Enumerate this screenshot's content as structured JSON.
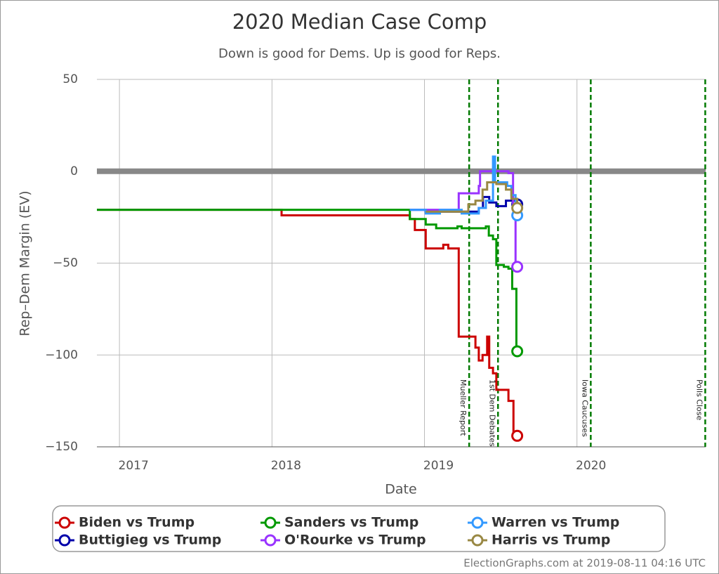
{
  "chart_data": {
    "type": "line",
    "step": true,
    "title": "2020 Median Case Comp",
    "subtitle": "Down is good for Dems. Up is good for Reps.",
    "x_label": "Date",
    "y_label": "Rep–Dem Margin (EV)",
    "xlim": [
      "2016-11-08",
      "2020-11-04"
    ],
    "xticks": [
      {
        "value": "2017-01-01",
        "label": "2017"
      },
      {
        "value": "2018-01-01",
        "label": "2018"
      },
      {
        "value": "2019-01-01",
        "label": "2019"
      },
      {
        "value": "2020-01-01",
        "label": "2020"
      }
    ],
    "ylim": [
      -150,
      50
    ],
    "yticks": [
      {
        "value": -150,
        "label": "−150"
      },
      {
        "value": -100,
        "label": "−100"
      },
      {
        "value": -50,
        "label": "−50"
      },
      0,
      50
    ],
    "grid": true,
    "reference_line": 0,
    "legend": "bottom",
    "annotations": [
      {
        "x": "2019-04-18",
        "label": "Mueller Report"
      },
      {
        "x": "2019-06-26",
        "label": "1st Dem Debates"
      },
      {
        "x": "2020-02-03",
        "label": "Iowa Caucuses"
      },
      {
        "x": "2020-11-03",
        "label": "Polls Close"
      }
    ],
    "annotation_color": "#007a00",
    "series": [
      {
        "name": "Biden vs Trump",
        "color": "#cc0000",
        "x": [
          "2016-11-08",
          "2018-01-24",
          "2018-11-27",
          "2018-12-09",
          "2019-01-04",
          "2019-02-15",
          "2019-02-27",
          "2019-03-24",
          "2019-05-03",
          "2019-05-11",
          "2019-05-20",
          "2019-05-31",
          "2019-06-05",
          "2019-06-14",
          "2019-06-22",
          "2019-07-21",
          "2019-08-02",
          "2019-08-11"
        ],
        "values": [
          -21,
          -24,
          -26,
          -32,
          -42,
          -40,
          -42,
          -90,
          -96,
          -103,
          -100,
          -90,
          -107,
          -110,
          -119,
          -125,
          -143,
          -144
        ]
      },
      {
        "name": "Buttigieg vs Trump",
        "color": "#0000aa",
        "x": [
          "2018-11-27",
          "2019-01-04",
          "2019-05-11",
          "2019-05-21",
          "2019-06-05",
          "2019-06-22",
          "2019-07-15",
          "2019-08-01",
          "2019-08-11"
        ],
        "values": [
          -21,
          -22,
          -20,
          -14,
          -17,
          -19,
          -16,
          -19,
          -18
        ]
      },
      {
        "name": "Sanders vs Trump",
        "color": "#009900",
        "x": [
          "2016-11-08",
          "2018-11-27",
          "2019-01-04",
          "2019-01-29",
          "2019-03-21",
          "2019-03-31",
          "2019-05-28",
          "2019-06-04",
          "2019-06-14",
          "2019-06-22",
          "2019-07-10",
          "2019-07-21",
          "2019-07-30",
          "2019-08-09",
          "2019-08-11"
        ],
        "values": [
          -21,
          -26,
          -29,
          -31,
          -30,
          -31,
          -30,
          -35,
          -37,
          -51,
          -52,
          -53,
          -64,
          -98,
          -98
        ]
      },
      {
        "name": "O'Rourke vs Trump",
        "color": "#9933ff",
        "x": [
          "2018-11-27",
          "2019-03-24",
          "2019-04-20",
          "2019-05-11",
          "2019-05-14",
          "2019-07-21",
          "2019-08-01",
          "2019-08-07",
          "2019-08-11"
        ],
        "values": [
          -21,
          -12,
          -12,
          -8,
          0,
          -1,
          -21,
          -52,
          -52
        ]
      },
      {
        "name": "Warren vs Trump",
        "color": "#3399ff",
        "x": [
          "2018-11-27",
          "2019-01-04",
          "2019-02-07",
          "2019-03-31",
          "2019-05-11",
          "2019-05-28",
          "2019-06-14",
          "2019-06-19",
          "2019-07-18",
          "2019-07-28",
          "2019-08-07",
          "2019-08-11"
        ],
        "values": [
          -21,
          -23,
          -21,
          -23,
          -20,
          -16,
          8,
          -6,
          -8,
          -13,
          -22,
          -24
        ]
      },
      {
        "name": "Harris vs Trump",
        "color": "#998844",
        "x": [
          "2019-01-04",
          "2019-04-16",
          "2019-05-03",
          "2019-05-20",
          "2019-05-31",
          "2019-06-22",
          "2019-07-15",
          "2019-07-28",
          "2019-08-11"
        ],
        "values": [
          -22,
          -18,
          -16,
          -10,
          -6,
          -7,
          -10,
          -15,
          -20
        ]
      }
    ],
    "footer": "ElectionGraphs.com at 2019-08-11 04:16 UTC"
  }
}
